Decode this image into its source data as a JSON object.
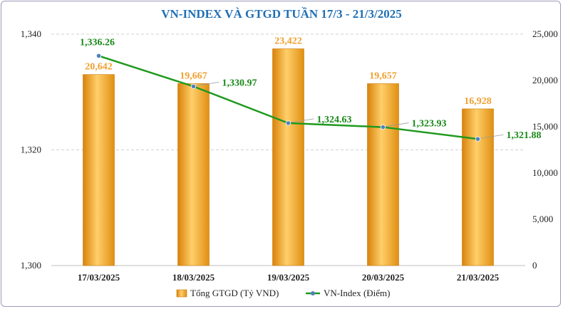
{
  "chart_data": {
    "type": "bar+line",
    "title": "VN-INDEX VÀ GTGD TUẦN 17/3 -  21/3/2025",
    "categories": [
      "17/03/2025",
      "18/03/2025",
      "19/03/2025",
      "20/03/2025",
      "21/03/2025"
    ],
    "series": [
      {
        "name": "Tổng GTGD (Tỷ VND)",
        "type": "bar",
        "axis": "right",
        "values": [
          20642,
          19667,
          23422,
          19657,
          16928
        ],
        "labels": [
          "20,642",
          "19,667",
          "23,422",
          "19,657",
          "16,928"
        ],
        "color": "#f5a623"
      },
      {
        "name": "VN-Index (Điểm)",
        "type": "line",
        "axis": "left",
        "values": [
          1336.26,
          1330.97,
          1324.63,
          1323.93,
          1321.88
        ],
        "labels": [
          "1,336.26",
          "1,330.97",
          "1,324.63",
          "1,323.93",
          "1,321.88"
        ],
        "color": "#1f9a1f",
        "marker_color": "#4f81bd"
      }
    ],
    "y_left": {
      "range": [
        1300,
        1340
      ],
      "ticks": [
        1300,
        1320,
        1340
      ],
      "tick_labels": [
        "1,300",
        "1,320",
        "1,340"
      ]
    },
    "y_right": {
      "range": [
        0,
        25000
      ],
      "ticks": [
        0,
        5000,
        10000,
        15000,
        20000,
        25000
      ],
      "tick_labels": [
        "0",
        "5,000",
        "10,000",
        "15,000",
        "20,000",
        "25,000"
      ]
    },
    "grid": true,
    "legend_position": "bottom"
  }
}
